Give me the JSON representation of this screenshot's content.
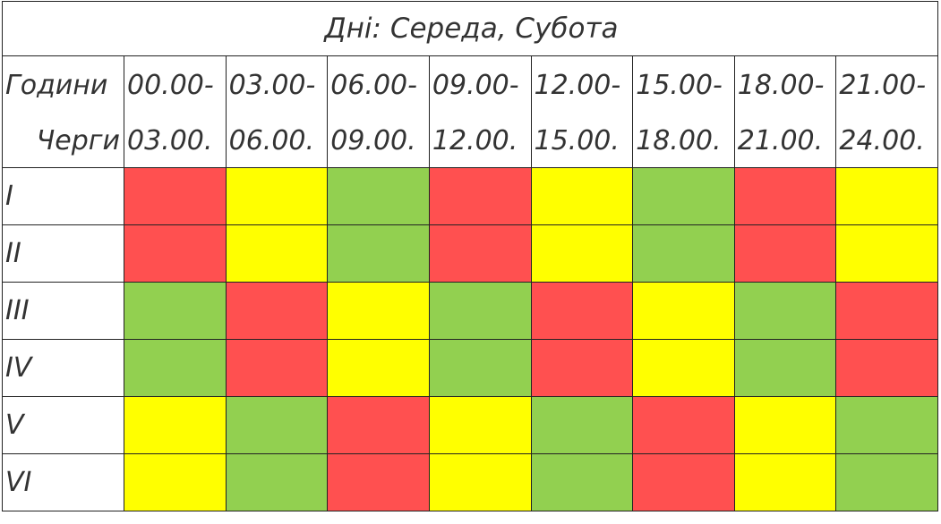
{
  "title": "Дні: Середа, Субота",
  "header": {
    "hours_label": "Години",
    "queues_label": "Черги",
    "starts": [
      "00.00-",
      "03.00-",
      "06.00-",
      "09.00-",
      "12.00-",
      "15.00-",
      "18.00-",
      "21.00-"
    ],
    "ends": [
      "03.00.",
      "06.00.",
      "09.00.",
      "12.00.",
      "15.00.",
      "18.00.",
      "21.00.",
      "24.00."
    ]
  },
  "rows": [
    {
      "label": "I",
      "colors": [
        "#ff5050",
        "#ffff00",
        "#92d050",
        "#ff5050",
        "#ffff00",
        "#92d050",
        "#ff5050",
        "#ffff00"
      ]
    },
    {
      "label": "II",
      "colors": [
        "#ff5050",
        "#ffff00",
        "#92d050",
        "#ff5050",
        "#ffff00",
        "#92d050",
        "#ff5050",
        "#ffff00"
      ]
    },
    {
      "label": "III",
      "colors": [
        "#92d050",
        "#ff5050",
        "#ffff00",
        "#92d050",
        "#ff5050",
        "#ffff00",
        "#92d050",
        "#ff5050"
      ]
    },
    {
      "label": "IV",
      "colors": [
        "#92d050",
        "#ff5050",
        "#ffff00",
        "#92d050",
        "#ff5050",
        "#ffff00",
        "#92d050",
        "#ff5050"
      ]
    },
    {
      "label": "V",
      "colors": [
        "#ffff00",
        "#92d050",
        "#ff5050",
        "#ffff00",
        "#92d050",
        "#ff5050",
        "#ffff00",
        "#92d050"
      ]
    },
    {
      "label": "VI",
      "colors": [
        "#ffff00",
        "#92d050",
        "#ff5050",
        "#ffff00",
        "#92d050",
        "#ff5050",
        "#ffff00",
        "#92d050"
      ]
    }
  ]
}
